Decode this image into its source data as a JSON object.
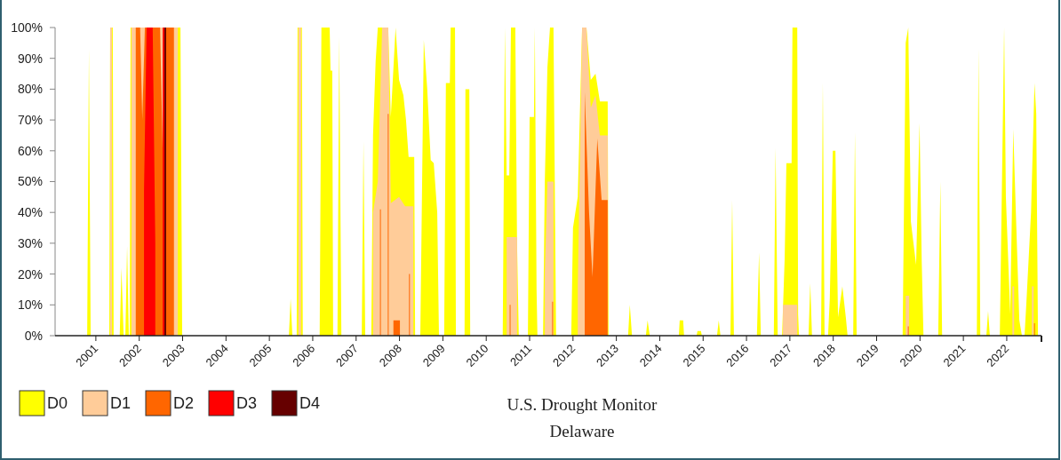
{
  "chart_data": {
    "type": "area",
    "title": "U.S. Drought Monitor",
    "subtitle": "Delaware",
    "legend": "bottom left",
    "xlim": [
      2000.06,
      2022.8
    ],
    "xticks": [
      2001,
      2002,
      2003,
      2004,
      2005,
      2006,
      2007,
      2008,
      2009,
      2010,
      2011,
      2012,
      2013,
      2014,
      2015,
      2016,
      2017,
      2018,
      2019,
      2020,
      2021,
      2022
    ],
    "ylim": [
      0,
      100
    ],
    "yticks": [
      {
        "value": 0,
        "label": "0%"
      },
      {
        "value": 10,
        "label": "10%"
      },
      {
        "value": 20,
        "label": "20%"
      },
      {
        "value": 30,
        "label": "30%"
      },
      {
        "value": 40,
        "label": "40%"
      },
      {
        "value": 50,
        "label": "50%"
      },
      {
        "value": 60,
        "label": "60%"
      },
      {
        "value": 70,
        "label": "70%"
      },
      {
        "value": 80,
        "label": "80%"
      },
      {
        "value": 90,
        "label": "90%"
      },
      {
        "value": 100,
        "label": "100%"
      }
    ],
    "series": [
      {
        "name": "D0",
        "color": "#ffff00",
        "x": [
          2000.06,
          2000.8,
          2000.84,
          2000.88,
          2001.31,
          2001.33,
          2001.39,
          2001.41,
          2001.55,
          2001.59,
          2001.64,
          2001.68,
          2001.72,
          2001.76,
          2001.78,
          2001.8,
          2002.95,
          2002.99,
          2005.45,
          2005.49,
          2005.53,
          2005.63,
          2005.65,
          2005.75,
          2005.77,
          2006.16,
          2006.2,
          2006.39,
          2006.41,
          2006.45,
          2006.47,
          2006.57,
          2006.61,
          2006.66,
          2007.13,
          2007.17,
          2007.21,
          2007.35,
          2007.39,
          2007.45,
          2007.5,
          2007.74,
          2007.8,
          2007.91,
          2007.99,
          2008.09,
          2008.15,
          2008.21,
          2008.34,
          2008.36,
          2008.48,
          2008.56,
          2008.64,
          2008.72,
          2008.79,
          2008.87,
          2008.91,
          2009.03,
          2009.07,
          2009.16,
          2009.18,
          2009.28,
          2009.3,
          2009.5,
          2009.52,
          2009.61,
          2009.63,
          2010.38,
          2010.43,
          2010.47,
          2010.53,
          2010.57,
          2010.67,
          2010.71,
          2010.75,
          2010.96,
          2011.0,
          2011.1,
          2011.12,
          2011.16,
          2011.18,
          2011.31,
          2011.35,
          2011.41,
          2011.47,
          2011.55,
          2011.61,
          2011.96,
          2012.0,
          2012.11,
          2012.21,
          2012.31,
          2012.41,
          2012.52,
          2012.62,
          2012.8,
          2012.82,
          2013.27,
          2013.31,
          2013.36,
          2013.68,
          2013.72,
          2013.77,
          2014.44,
          2014.46,
          2014.54,
          2014.56,
          2014.85,
          2014.87,
          2014.95,
          2014.97,
          2015.32,
          2015.36,
          2015.4,
          2015.63,
          2015.67,
          2015.71,
          2016.24,
          2016.29,
          2016.33,
          2016.63,
          2016.67,
          2016.72,
          2016.82,
          2016.88,
          2016.92,
          2017.04,
          2017.06,
          2017.17,
          2017.19,
          2017.21,
          2017.43,
          2017.47,
          2017.51,
          2017.72,
          2017.76,
          2017.8,
          2017.88,
          2017.92,
          2017.99,
          2018.05,
          2018.11,
          2018.21,
          2018.29,
          2018.33,
          2018.46,
          2018.5,
          2018.54,
          2019.6,
          2019.67,
          2019.73,
          2019.79,
          2019.85,
          2019.91,
          2019.99,
          2020.04,
          2020.08,
          2020.42,
          2020.47,
          2020.51,
          2021.31,
          2021.35,
          2021.39,
          2021.53,
          2021.57,
          2021.61,
          2021.84,
          2021.94,
          2021.98,
          2022.08,
          2022.15,
          2022.21,
          2022.29,
          2022.35,
          2022.41,
          2022.45,
          2022.56,
          2022.64,
          2022.68,
          2022.72,
          2022.8
        ],
        "values": [
          0,
          0,
          93,
          0,
          0,
          100,
          100,
          0,
          0,
          22,
          0,
          0,
          29,
          0,
          0,
          100,
          100,
          0,
          0,
          12,
          0,
          0,
          100,
          100,
          0,
          0,
          100,
          100,
          86,
          86,
          0,
          0,
          97,
          0,
          0,
          63,
          0,
          0,
          65,
          89,
          100,
          100,
          71,
          100,
          83,
          78,
          70,
          58,
          58,
          0,
          0,
          96,
          80,
          57,
          56,
          40,
          0,
          0,
          82,
          82,
          100,
          100,
          0,
          0,
          80,
          80,
          0,
          0,
          100,
          52,
          52,
          100,
          100,
          30,
          0,
          0,
          71,
          71,
          100,
          15,
          0,
          0,
          50,
          87,
          100,
          100,
          0,
          0,
          35,
          45,
          100,
          100,
          83,
          85,
          76,
          76,
          0,
          0,
          10,
          0,
          0,
          5,
          0,
          0,
          5,
          5,
          0,
          0,
          1.5,
          1.5,
          0,
          0,
          5,
          0,
          0,
          44,
          0,
          0,
          27,
          0,
          0,
          61,
          0,
          0,
          25,
          56,
          56,
          100,
          100,
          7,
          0,
          0,
          17,
          0,
          0,
          82,
          0,
          0,
          12,
          60,
          60,
          6,
          16,
          6,
          0,
          0,
          66,
          0,
          0,
          95,
          100,
          37,
          30,
          23,
          69,
          24,
          0,
          0,
          50,
          0,
          0,
          93,
          0,
          0,
          8,
          0,
          0,
          100,
          45,
          7,
          67,
          40,
          5,
          0,
          0,
          10,
          40,
          82,
          72,
          0,
          0
        ]
      },
      {
        "name": "D1",
        "color": "#ffcc99",
        "x": [
          2001.33,
          2001.37,
          2001.5,
          2001.82,
          2002.89,
          2004,
          2005.67,
          2005.73,
          2006.5,
          2007.39,
          2007.5,
          2007.6,
          2007.74,
          2007.8,
          2007.99,
          2008.13,
          2008.32,
          2009,
          2010.47,
          2010.71,
          2011,
          2011.35,
          2011.41,
          2011.55,
          2011.8,
          2012.11,
          2012.21,
          2012.31,
          2012.41,
          2012.52,
          2012.62,
          2012.8,
          2014,
          2016.84,
          2017.17,
          2018,
          2019.67,
          2019.75,
          2021,
          2022.13,
          2022.17,
          2022.4,
          2022.58,
          2022.62
        ],
        "values": [
          100,
          100,
          null,
          100,
          100,
          null,
          100,
          100,
          null,
          40,
          50,
          100,
          100,
          43,
          45,
          42,
          42,
          null,
          32,
          32,
          null,
          20,
          50,
          50,
          null,
          16,
          100,
          100,
          74,
          78,
          65,
          65,
          null,
          10,
          10,
          null,
          13,
          13,
          null,
          16,
          16,
          null,
          16,
          16
        ]
      },
      {
        "name": "D2",
        "color": "#ff6600",
        "x": [
          2001.92,
          2002.02,
          2002.07,
          2002.13,
          2002.48,
          2002.54,
          2002.6,
          2002.8,
          2005,
          2007.55,
          2007.57,
          2007.65,
          2007.73,
          2007.75,
          2007.84,
          2007.86,
          2008.01,
          2008.1,
          2008.22,
          2008.24,
          2009,
          2010.54,
          2010.56,
          2011,
          2011.52,
          2011.54,
          2011.9,
          2012.27,
          2012.37,
          2012.45,
          2012.56,
          2012.66,
          2012.8,
          2015,
          2019.72,
          2019.74,
          2021,
          2022.63,
          2022.65
        ],
        "values": [
          100,
          100,
          70,
          100,
          100,
          60,
          100,
          100,
          null,
          41,
          41,
          null,
          72,
          72,
          null,
          5,
          5,
          null,
          20,
          20,
          null,
          10,
          10,
          null,
          11,
          11,
          null,
          79,
          40,
          19,
          64,
          44,
          44,
          null,
          3,
          3,
          null,
          4,
          4
        ]
      },
      {
        "name": "D3",
        "color": "#ff0000",
        "x": [
          2002.11,
          2002.17,
          2002.31,
          2002.37,
          2002.45,
          2002.54,
          2002.62
        ],
        "values": [
          47,
          100,
          100,
          30,
          null,
          100,
          100
        ]
      },
      {
        "name": "D4",
        "color": "#660000",
        "x": [
          2002.58,
          2002.62
        ],
        "values": [
          100,
          100
        ]
      }
    ]
  }
}
